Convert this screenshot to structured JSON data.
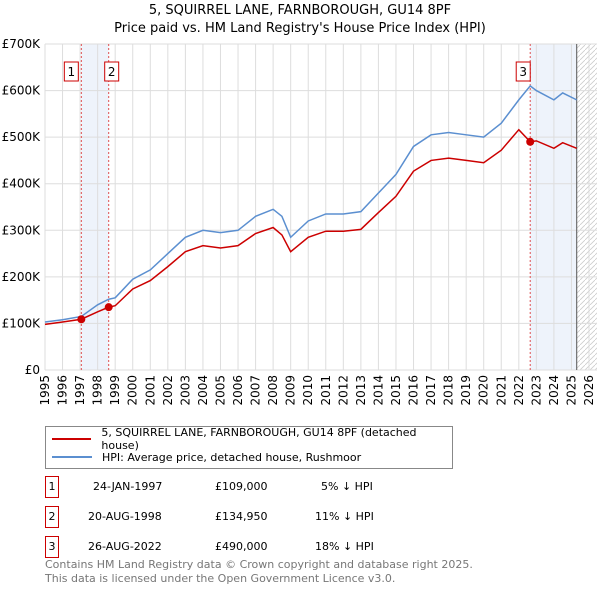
{
  "title": "5, SQUIRREL LANE, FARNBOROUGH, GU14 8PF",
  "subtitle": "Price paid vs. HM Land Registry's House Price Index (HPI)",
  "chart_data": {
    "type": "line",
    "xlim": [
      1995,
      2026
    ],
    "ylim": [
      0,
      700000
    ],
    "x_ticks": [
      "1995",
      "1996",
      "1997",
      "1998",
      "1999",
      "2000",
      "2001",
      "2002",
      "2003",
      "2004",
      "2005",
      "2006",
      "2007",
      "2008",
      "2009",
      "2010",
      "2011",
      "2012",
      "2013",
      "2014",
      "2015",
      "2016",
      "2017",
      "2018",
      "2019",
      "2020",
      "2021",
      "2022",
      "2023",
      "2024",
      "2025",
      "2026"
    ],
    "y_ticks": [
      {
        "v": 0,
        "label": "£0"
      },
      {
        "v": 100000,
        "label": "£100K"
      },
      {
        "v": 200000,
        "label": "£200K"
      },
      {
        "v": 300000,
        "label": "£300K"
      },
      {
        "v": 400000,
        "label": "£400K"
      },
      {
        "v": 500000,
        "label": "£500K"
      },
      {
        "v": 600000,
        "label": "£600K"
      },
      {
        "v": 700000,
        "label": "£700K"
      }
    ],
    "grid": true,
    "series": [
      {
        "name": "5, SQUIRREL LANE, FARNBOROUGH, GU14 8PF (detached house)",
        "color": "#cc0000",
        "x": [
          1995,
          1996,
          1997.07,
          1998,
          1998.63,
          1999,
          2000,
          2001,
          2002,
          2003,
          2004,
          2005,
          2006,
          2007,
          2008,
          2008.5,
          2009,
          2010,
          2011,
          2012,
          2013,
          2014,
          2015,
          2016,
          2017,
          2018,
          2019,
          2020,
          2021,
          2022,
          2022.65,
          2023,
          2024,
          2024.5,
          2025.3
        ],
        "y": [
          98000,
          103000,
          109000,
          125000,
          134950,
          138000,
          174000,
          192000,
          222000,
          254000,
          267000,
          262000,
          267000,
          293000,
          306000,
          290000,
          254000,
          285000,
          298000,
          298000,
          302000,
          338000,
          373000,
          427000,
          450000,
          455000,
          450000,
          445000,
          472000,
          516000,
          490000,
          492000,
          476000,
          488000,
          476000
        ]
      },
      {
        "name": "HPI: Average price, detached house, Rushmoor",
        "color": "#5b8fd0",
        "x": [
          1995,
          1996,
          1997.07,
          1998,
          1998.63,
          1999,
          2000,
          2001,
          2002,
          2003,
          2004,
          2005,
          2006,
          2007,
          2008,
          2008.5,
          2009,
          2010,
          2011,
          2012,
          2013,
          2014,
          2015,
          2016,
          2017,
          2018,
          2019,
          2020,
          2021,
          2022,
          2022.65,
          2023,
          2024,
          2024.5,
          2025.3
        ],
        "y": [
          103000,
          108000,
          115000,
          140000,
          152000,
          155000,
          195000,
          215000,
          250000,
          285000,
          300000,
          295000,
          300000,
          330000,
          345000,
          330000,
          285000,
          320000,
          335000,
          335000,
          340000,
          380000,
          420000,
          480000,
          505000,
          510000,
          505000,
          500000,
          530000,
          580000,
          610000,
          600000,
          580000,
          595000,
          580000
        ]
      }
    ],
    "sales": [
      {
        "id": "1",
        "x": 1997.07,
        "y": 109000
      },
      {
        "id": "2",
        "x": 1998.63,
        "y": 134950
      },
      {
        "id": "3",
        "x": 2022.65,
        "y": 490000
      }
    ]
  },
  "legend": {
    "property": "5, SQUIRREL LANE, FARNBOROUGH, GU14 8PF (detached house)",
    "hpi": "HPI: Average price, detached house, Rushmoor"
  },
  "transactions": [
    {
      "id": "1",
      "date": "24-JAN-1997",
      "price": "£109,000",
      "delta": "5% ↓ HPI"
    },
    {
      "id": "2",
      "date": "20-AUG-1998",
      "price": "£134,950",
      "delta": "11% ↓ HPI"
    },
    {
      "id": "3",
      "date": "26-AUG-2022",
      "price": "£490,000",
      "delta": "18% ↓ HPI"
    }
  ],
  "footer": {
    "line1": "Contains HM Land Registry data © Crown copyright and database right 2025.",
    "line2": "This data is licensed under the Open Government Licence v3.0."
  }
}
